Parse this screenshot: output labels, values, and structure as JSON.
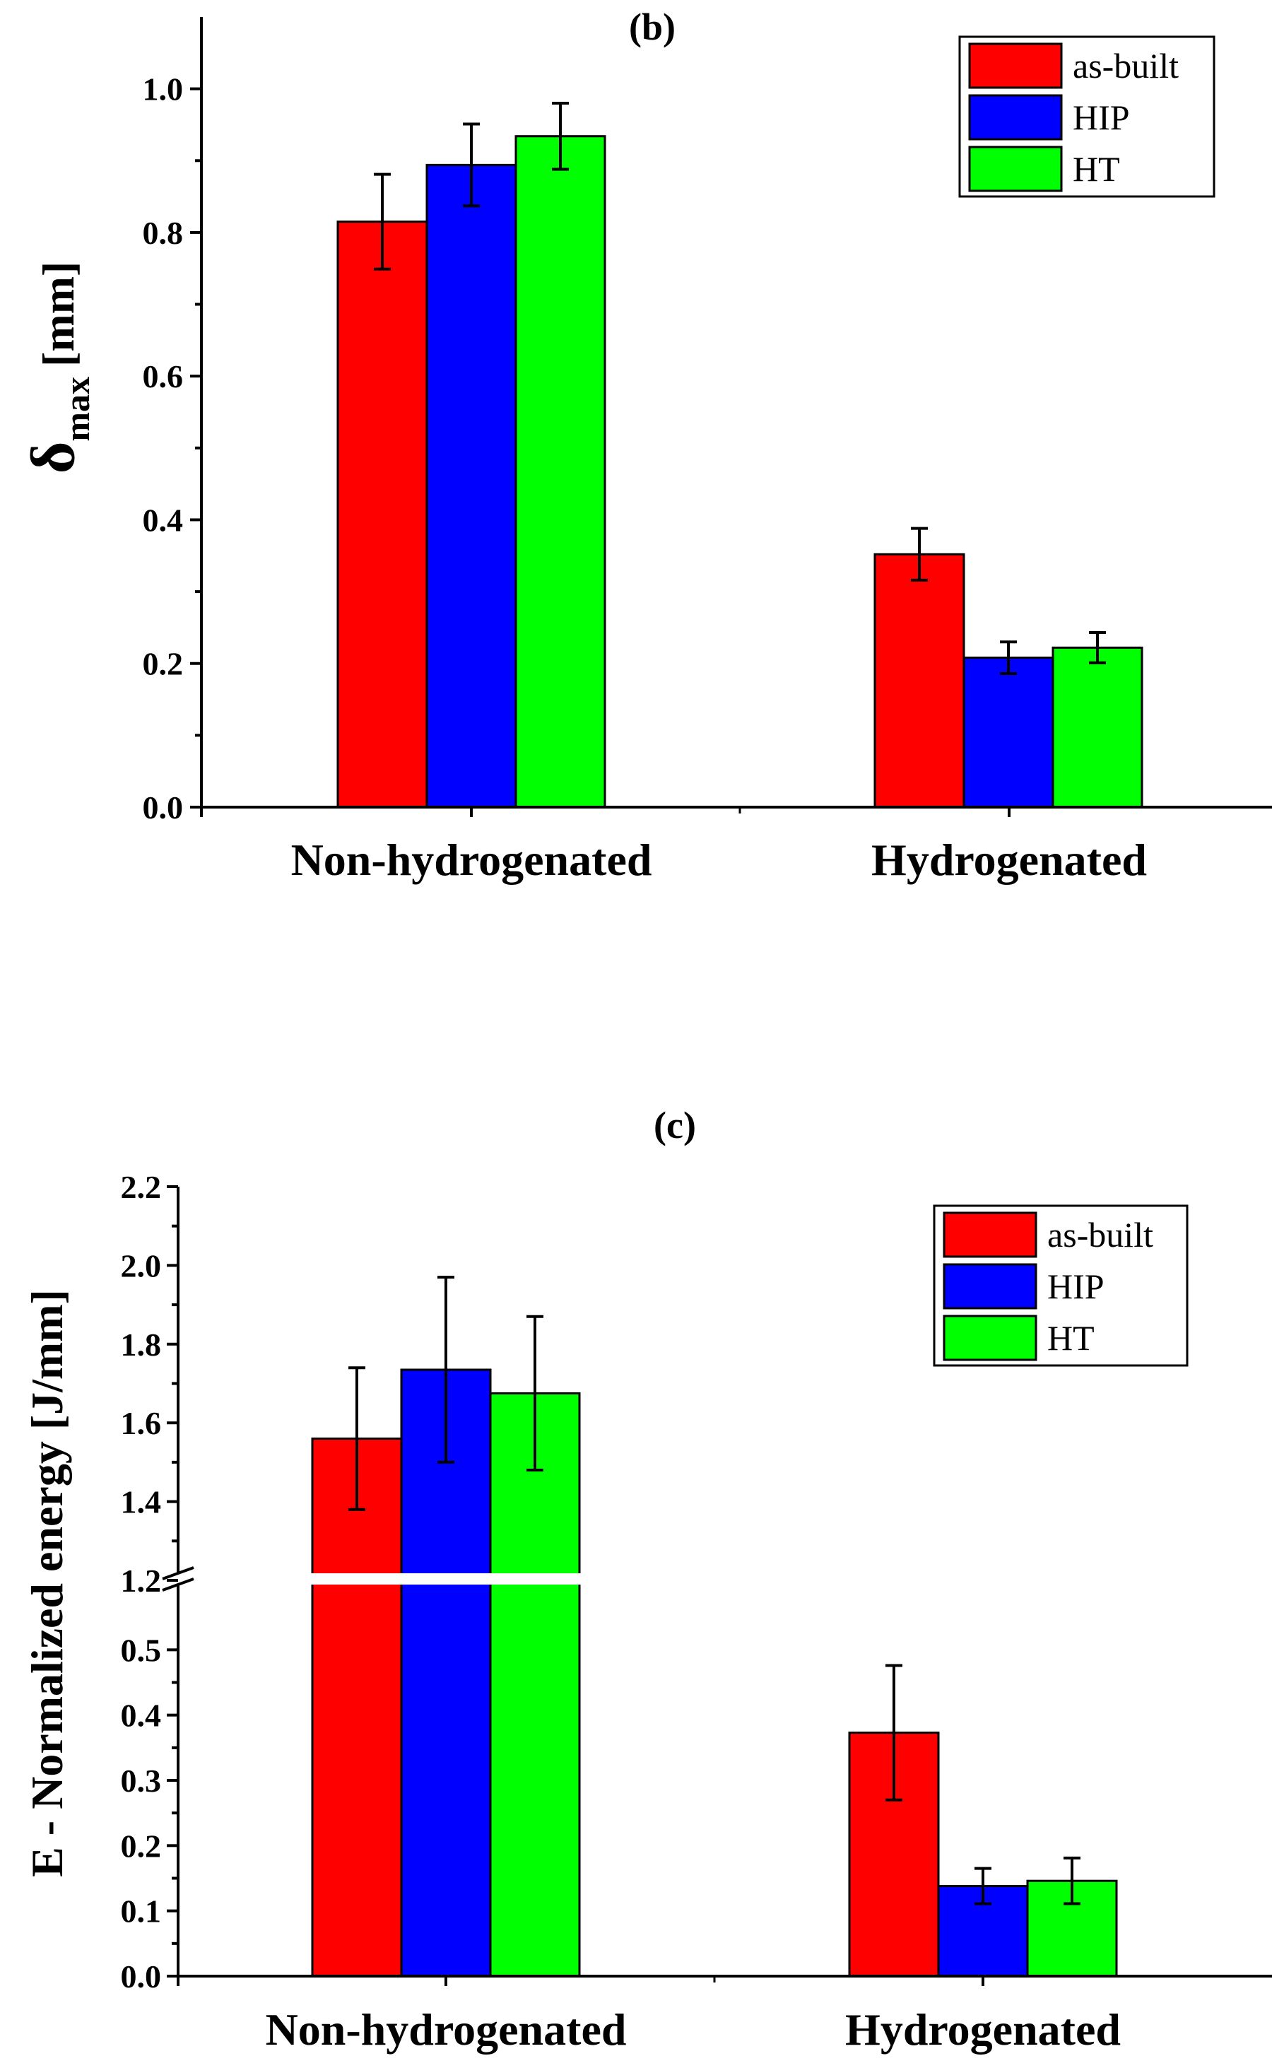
{
  "chart_data": [
    {
      "type": "bar",
      "title": "(b)",
      "ylabel": "δmax [mm]",
      "ylabel_symbol": "δ",
      "ylabel_subscript": "max",
      "ylabel_unit": "[mm]",
      "xlabel": "",
      "categories": [
        "Non-hydrogenated",
        "Hydrogenated"
      ],
      "ylim": [
        0,
        1.1
      ],
      "yticks": [
        "0.0",
        "0.2",
        "0.4",
        "0.6",
        "0.8",
        "1.0"
      ],
      "legend_position": "top-right",
      "series": [
        {
          "name": "as-built",
          "color": "#ff0000",
          "values": [
            0.815,
            0.352
          ],
          "errors": [
            0.066,
            0.036
          ]
        },
        {
          "name": "HIP",
          "color": "#0000ff",
          "values": [
            0.894,
            0.208
          ],
          "errors": [
            0.057,
            0.022
          ]
        },
        {
          "name": "HT",
          "color": "#00ff00",
          "values": [
            0.934,
            0.222
          ],
          "errors": [
            0.046,
            0.021
          ]
        }
      ]
    },
    {
      "type": "bar",
      "title": "(c)",
      "ylabel": "E - Normalized energy [J/mm]",
      "xlabel": "",
      "categories": [
        "Non-hydrogenated",
        "Hydrogenated"
      ],
      "axis_break": {
        "lower_range": [
          0,
          0.6
        ],
        "upper_range": [
          1.2,
          2.2
        ]
      },
      "yticks_lower": [
        "0.0",
        "0.1",
        "0.2",
        "0.3",
        "0.4",
        "0.5"
      ],
      "yticks_upper": [
        "1.2",
        "1.4",
        "1.6",
        "1.8",
        "2.0",
        "2.2"
      ],
      "legend_position": "top-right",
      "series": [
        {
          "name": "as-built",
          "color": "#ff0000",
          "values": [
            1.56,
            0.373
          ],
          "errors": [
            0.18,
            0.103
          ]
        },
        {
          "name": "HIP",
          "color": "#0000ff",
          "values": [
            1.735,
            0.138
          ],
          "errors": [
            0.235,
            0.027
          ]
        },
        {
          "name": "HT",
          "color": "#00ff00",
          "values": [
            1.675,
            0.146
          ],
          "errors": [
            0.195,
            0.035
          ]
        }
      ]
    }
  ]
}
